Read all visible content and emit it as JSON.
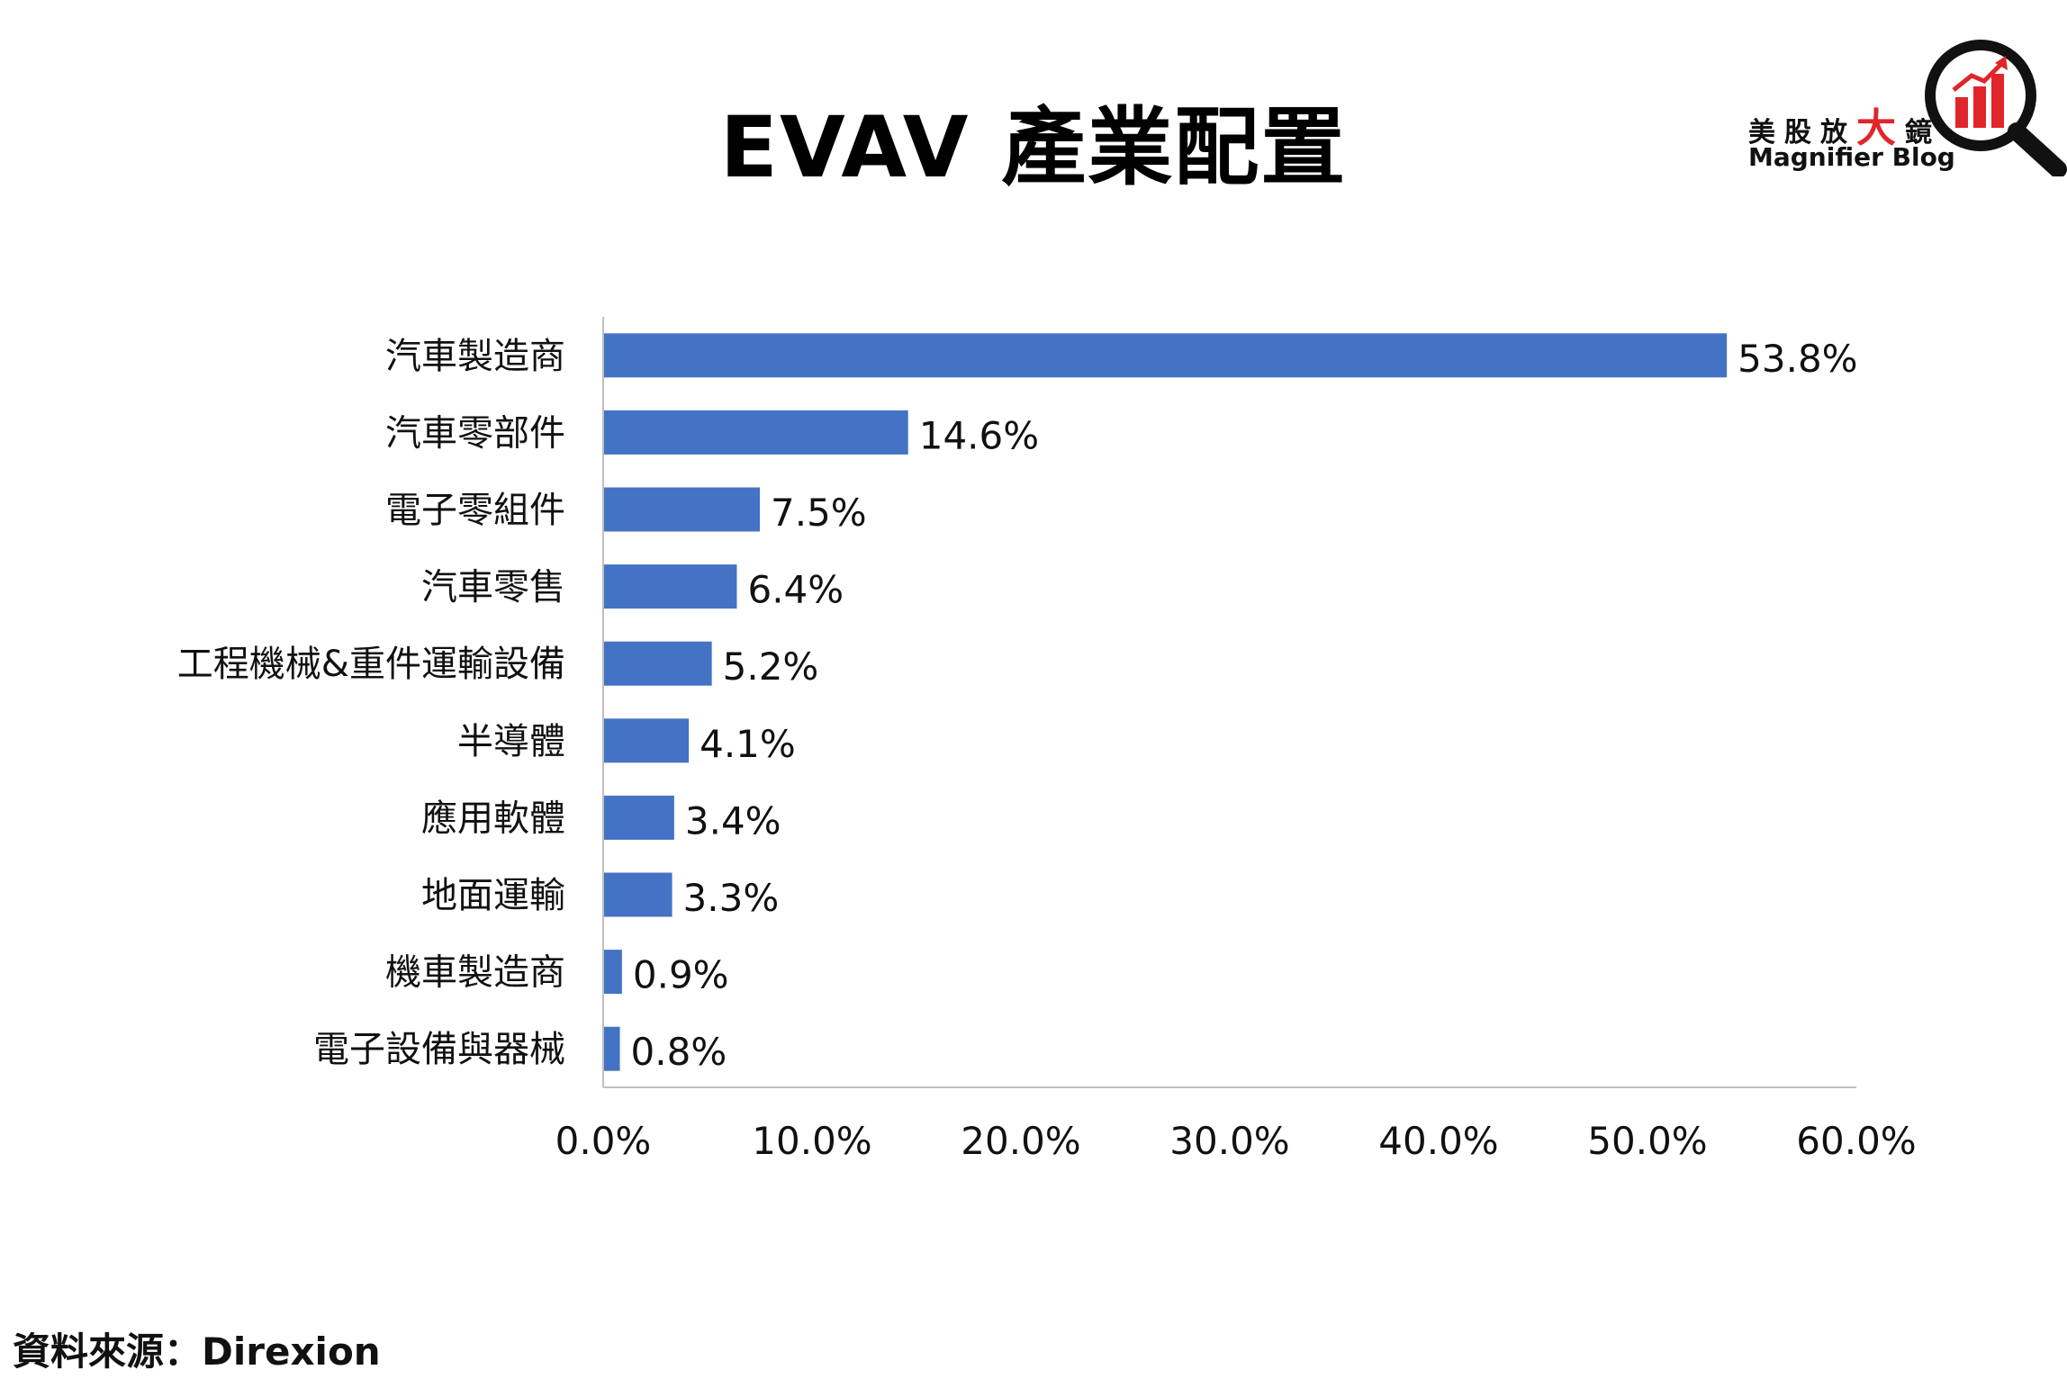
{
  "page": {
    "title": "EVAV 產業配置",
    "source_label": "資料來源：Direxion"
  },
  "logo": {
    "name_cn_part1": "美股放",
    "name_cn_big": "大",
    "name_cn_part2": "鏡",
    "name_en": "Magnifier Blog",
    "icon": "magnifier-chart-icon",
    "accent_color": "#e0262b"
  },
  "chart_data": {
    "type": "bar",
    "orientation": "horizontal",
    "title": "EVAV 產業配置",
    "categories": [
      "汽車製造商",
      "汽車零部件",
      "電子零組件",
      "汽車零售",
      "工程機械&重件運輸設備",
      "半導體",
      "應用軟體",
      "地面運輸",
      "機車製造商",
      "電子設備與器械"
    ],
    "values": [
      53.8,
      14.6,
      7.5,
      6.4,
      5.2,
      4.1,
      3.4,
      3.3,
      0.9,
      0.8
    ],
    "data_labels": [
      "53.8%",
      "14.6%",
      "7.5%",
      "6.4%",
      "5.2%",
      "4.1%",
      "3.4%",
      "3.3%",
      "0.9%",
      "0.8%"
    ],
    "xlim": [
      0,
      60
    ],
    "x_ticks": [
      0,
      10,
      20,
      30,
      40,
      50,
      60
    ],
    "x_tick_labels": [
      "0.0%",
      "10.0%",
      "20.0%",
      "30.0%",
      "40.0%",
      "50.0%",
      "60.0%"
    ],
    "xlabel": "",
    "ylabel": "",
    "grid": false,
    "legend": "none",
    "bar_color": "#4472c4"
  }
}
